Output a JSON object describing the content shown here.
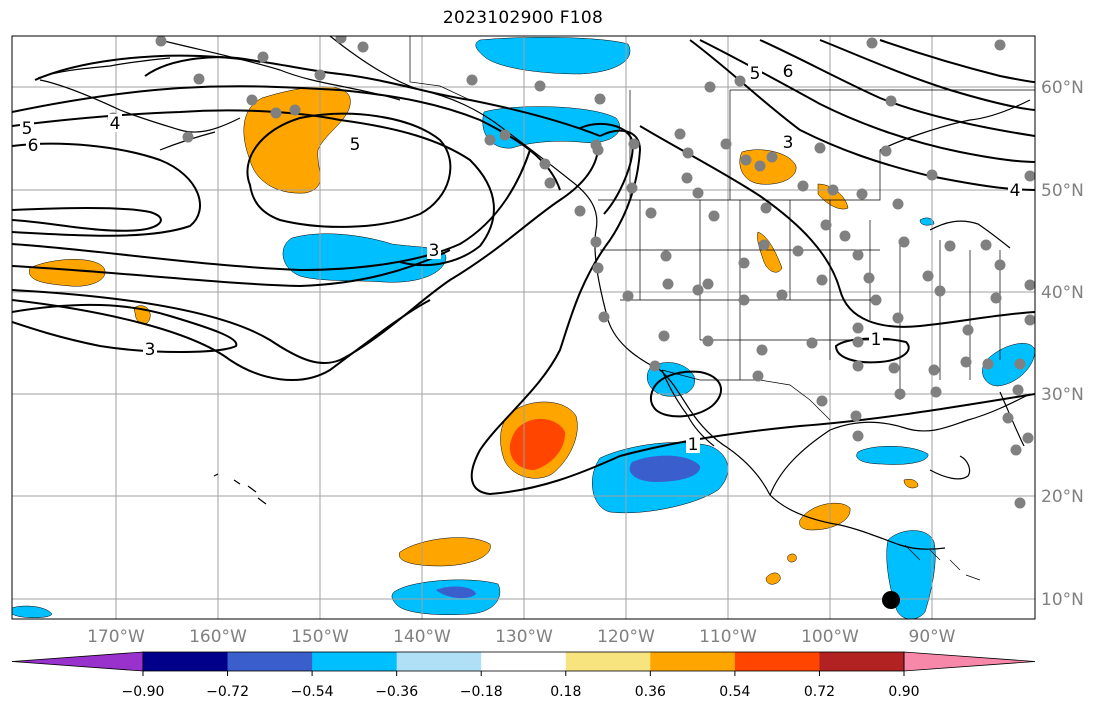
{
  "title": "2023102900 F108",
  "map": {
    "projection": "cylindrical",
    "lon_range": [
      -180,
      -79
    ],
    "lat_range": [
      8,
      65
    ],
    "grid": true,
    "lon_labels": [
      "170°W",
      "160°W",
      "150°W",
      "140°W",
      "130°W",
      "120°W",
      "110°W",
      "100°W",
      "90°W"
    ],
    "lat_labels": [
      "10°N",
      "20°N",
      "30°N",
      "40°N",
      "50°N",
      "60°N"
    ],
    "contour_labels": [
      "5",
      "6",
      "4",
      "5",
      "3",
      "3",
      "1",
      "1",
      "3",
      "4",
      "5",
      "6"
    ],
    "marker": {
      "lon": -94,
      "lat": 9.8,
      "color": "#000000"
    }
  },
  "colorbar": {
    "ticks": [
      "−0.90",
      "−0.72",
      "−0.54",
      "−0.36",
      "−0.18",
      "0.18",
      "0.36",
      "0.54",
      "0.72",
      "0.90"
    ],
    "under_color": "#9932cc",
    "over_color": "#f788a9",
    "colors": [
      "#00008b",
      "#3a5fcd",
      "#00bfff",
      "#b0e0f6",
      "#ffffff",
      "#f7e47e",
      "#ffa500",
      "#ff4500",
      "#b22222"
    ]
  }
}
